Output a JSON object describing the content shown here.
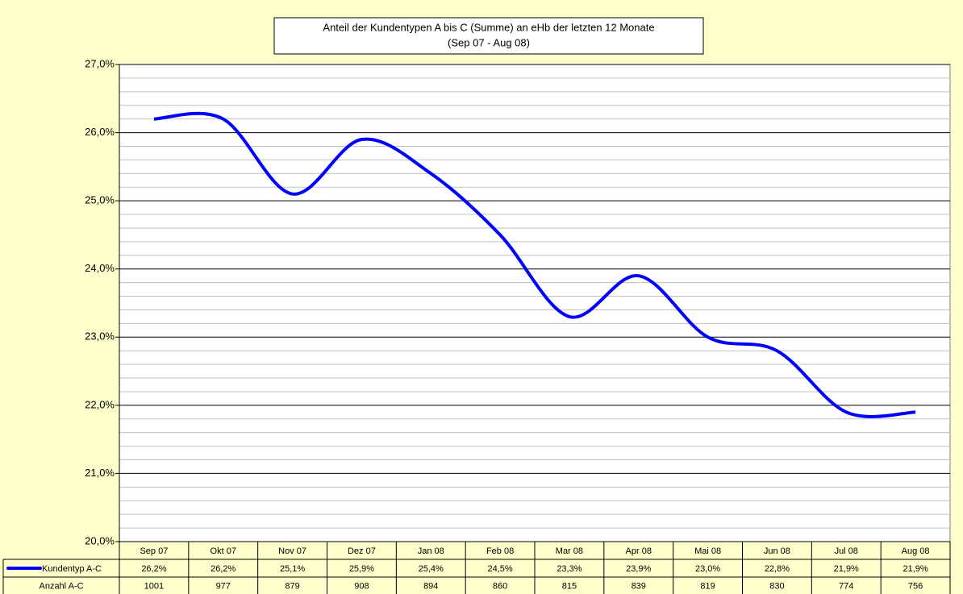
{
  "chart_data": {
    "type": "line",
    "title": "Anteil der Kundentypen A bis C (Summe) an eHb der letzten 12 Monate",
    "subtitle": "(Sep 07 - Aug 08)",
    "categories": [
      "Sep 07",
      "Okt 07",
      "Nov 07",
      "Dez 07",
      "Jan 08",
      "Feb 08",
      "Mar 08",
      "Apr 08",
      "Mai 08",
      "Jun 08",
      "Jul 08",
      "Aug 08"
    ],
    "series": [
      {
        "name": "Kundentyp A-C",
        "color": "#0000ff",
        "values": [
          26.2,
          26.2,
          25.1,
          25.9,
          25.4,
          24.5,
          23.3,
          23.9,
          23.0,
          22.8,
          21.9,
          21.9
        ],
        "value_labels": [
          "26,2%",
          "26,2%",
          "25,1%",
          "25,9%",
          "25,4%",
          "24,5%",
          "23,3%",
          "23,9%",
          "23,0%",
          "22,8%",
          "21,9%",
          "21,9%"
        ]
      }
    ],
    "counts": {
      "name": "Anzahl A-C",
      "values": [
        1001,
        977,
        879,
        908,
        894,
        860,
        815,
        839,
        819,
        830,
        774,
        756
      ]
    },
    "ylim": [
      20,
      27
    ],
    "yticks": [
      {
        "value": 20,
        "label": "20,0%"
      },
      {
        "value": 21,
        "label": "21,0%"
      },
      {
        "value": 22,
        "label": "22,0%"
      },
      {
        "value": 23,
        "label": "23,0%"
      },
      {
        "value": 24,
        "label": "24,0%"
      },
      {
        "value": 25,
        "label": "25,0%"
      },
      {
        "value": 26,
        "label": "26,0%"
      },
      {
        "value": 27,
        "label": "27,0%"
      }
    ],
    "grid": true
  }
}
